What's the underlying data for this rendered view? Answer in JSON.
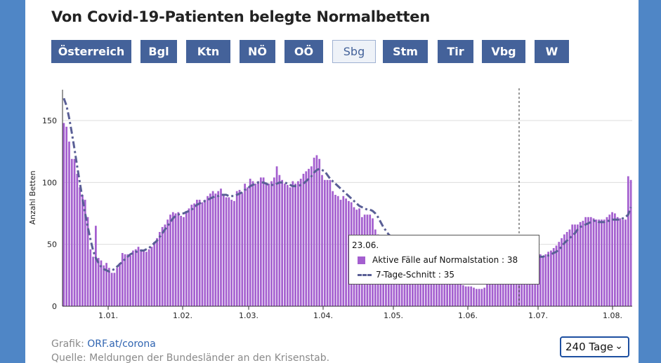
{
  "title": "Von Covid-19-Patienten belegte Normalbetten",
  "tabs": [
    "Österreich",
    "Bgl",
    "Ktn",
    "NÖ",
    "OÖ",
    "Sbg",
    "Stm",
    "Tir",
    "Vbg",
    "W"
  ],
  "active_tab": "Sbg",
  "tooltip": {
    "date": "23.06.",
    "row1_label": "Aktive Fälle auf Normalstation",
    "row1_value": "38",
    "row2_label": "7-Tage-Schnitt",
    "row2_value": "35"
  },
  "footer": {
    "graphic_prefix": "Grafik: ",
    "graphic_link": "ORF.at/corona",
    "source": "Quelle: Meldungen der Bundesländer an den Krisenstab."
  },
  "range_select": {
    "value": "240 Tage"
  },
  "colors": {
    "bars": "#a45fcf",
    "avg_line": "#5a5f96",
    "tabs": "#44629a",
    "background": "#4f86c6"
  },
  "icons": {
    "select_chevron": "chevron-down-icon"
  },
  "chart_data": {
    "type": "bar",
    "ylabel": "Anzahl Betten",
    "ylim": [
      0,
      175
    ],
    "yticks": [
      0,
      50,
      100,
      150
    ],
    "xticks": [
      "1.01.",
      "1.02.",
      "1.03.",
      "1.04.",
      "1.05.",
      "1.06.",
      "1.07.",
      "1.08."
    ],
    "x_start": "24.12.",
    "x_end": "10.08.",
    "marker_date": "29.06.",
    "series": [
      {
        "name": "Aktive Fälle auf Normalstation",
        "style": "bar",
        "values": [
          148,
          145,
          133,
          119,
          119,
          107,
          96,
          90,
          86,
          72,
          46,
          40,
          65,
          39,
          37,
          33,
          35,
          31,
          27,
          27,
          31,
          35,
          43,
          42,
          42,
          41,
          45,
          46,
          48,
          46,
          45,
          44,
          46,
          48,
          52,
          55,
          60,
          64,
          66,
          70,
          74,
          76,
          75,
          76,
          73,
          72,
          77,
          79,
          82,
          83,
          86,
          86,
          84,
          86,
          89,
          91,
          93,
          91,
          93,
          95,
          90,
          88,
          88,
          86,
          85,
          93,
          94,
          91,
          99,
          96,
          103,
          101,
          99,
          101,
          104,
          104,
          100,
          99,
          101,
          104,
          113,
          106,
          102,
          99,
          98,
          96,
          101,
          99,
          101,
          103,
          107,
          109,
          111,
          113,
          120,
          122,
          119,
          106,
          102,
          102,
          102,
          93,
          90,
          89,
          86,
          89,
          87,
          85,
          84,
          80,
          78,
          79,
          72,
          74,
          74,
          74,
          71,
          62,
          58,
          55,
          54,
          52,
          53,
          50,
          47,
          44,
          44,
          41,
          40,
          38,
          36,
          35,
          34,
          33,
          31,
          30,
          28,
          28,
          27,
          26,
          24,
          24,
          24,
          23,
          22,
          21,
          20,
          20,
          19,
          18,
          17,
          16,
          16,
          16,
          15,
          14,
          14,
          14,
          15,
          18,
          22,
          27,
          32,
          36,
          36,
          38,
          37,
          40,
          40,
          40,
          41,
          43,
          45,
          48,
          46,
          40,
          38,
          38,
          40,
          42,
          40,
          42,
          44,
          45,
          47,
          49,
          52,
          55,
          58,
          60,
          62,
          66,
          66,
          66,
          68,
          69,
          72,
          72,
          72,
          71,
          70,
          70,
          70,
          70,
          72,
          74,
          76,
          75,
          72,
          71,
          70,
          70,
          105,
          102
        ]
      },
      {
        "name": "7-Tage-Schnitt",
        "style": "dashdot-line",
        "values": [
          168,
          162,
          152,
          140,
          127,
          113,
          100,
          87,
          75,
          64,
          54,
          45,
          39,
          35,
          32,
          30,
          29,
          28,
          29,
          30,
          32,
          34,
          36,
          38,
          40,
          42,
          43,
          44,
          44,
          45,
          45,
          46,
          47,
          49,
          51,
          53,
          56,
          59,
          62,
          65,
          68,
          71,
          73,
          74,
          75,
          75,
          76,
          77,
          78,
          80,
          82,
          83,
          84,
          85,
          86,
          87,
          88,
          89,
          89,
          90,
          90,
          90,
          89,
          89,
          89,
          90,
          91,
          92,
          94,
          95,
          97,
          98,
          99,
          100,
          100,
          100,
          99,
          98,
          98,
          98,
          99,
          100,
          100,
          100,
          99,
          98,
          97,
          97,
          97,
          98,
          99,
          101,
          103,
          105,
          108,
          110,
          111,
          110,
          109,
          106,
          103,
          101,
          99,
          97,
          95,
          93,
          91,
          89,
          87,
          85,
          83,
          81,
          80,
          79,
          78,
          78,
          77,
          75,
          72,
          68,
          64,
          61,
          58,
          56,
          54,
          52,
          50,
          48,
          46,
          44,
          42,
          41,
          39,
          38,
          36,
          35,
          34,
          33,
          32,
          31,
          30,
          29,
          28,
          27,
          26,
          25,
          24,
          23,
          23,
          22,
          22,
          21,
          21,
          21,
          20,
          20,
          20,
          21,
          22,
          24,
          27,
          30,
          33,
          35,
          36,
          37,
          37,
          38,
          39,
          40,
          41,
          42,
          43,
          43,
          43,
          42,
          41,
          40,
          40,
          40,
          40,
          41,
          41,
          42,
          43,
          44,
          46,
          48,
          51,
          53,
          55,
          57,
          59,
          62,
          64,
          65,
          66,
          67,
          68,
          69,
          69,
          68,
          68,
          68,
          69,
          69,
          70,
          70,
          70,
          70,
          71,
          72,
          74,
          80
        ]
      }
    ]
  }
}
